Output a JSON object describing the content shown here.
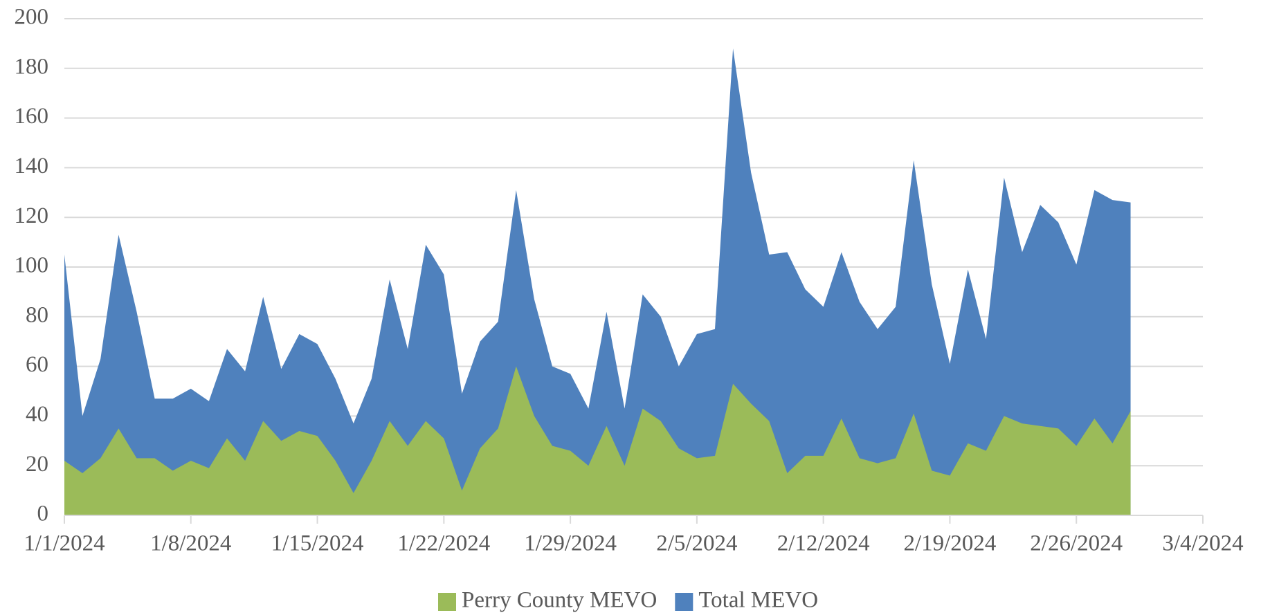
{
  "chart_data": {
    "type": "area",
    "x": [
      "1/1/2024",
      "1/2/2024",
      "1/3/2024",
      "1/4/2024",
      "1/5/2024",
      "1/6/2024",
      "1/7/2024",
      "1/8/2024",
      "1/9/2024",
      "1/10/2024",
      "1/11/2024",
      "1/12/2024",
      "1/13/2024",
      "1/14/2024",
      "1/15/2024",
      "1/16/2024",
      "1/17/2024",
      "1/18/2024",
      "1/19/2024",
      "1/20/2024",
      "1/21/2024",
      "1/22/2024",
      "1/23/2024",
      "1/24/2024",
      "1/25/2024",
      "1/26/2024",
      "1/27/2024",
      "1/28/2024",
      "1/29/2024",
      "1/30/2024",
      "1/31/2024",
      "2/1/2024",
      "2/2/2024",
      "2/3/2024",
      "2/4/2024",
      "2/5/2024",
      "2/6/2024",
      "2/7/2024",
      "2/8/2024",
      "2/9/2024",
      "2/10/2024",
      "2/11/2024",
      "2/12/2024",
      "2/13/2024",
      "2/14/2024",
      "2/15/2024",
      "2/16/2024",
      "2/17/2024",
      "2/18/2024",
      "2/19/2024",
      "2/20/2024",
      "2/21/2024",
      "2/22/2024",
      "2/23/2024",
      "2/24/2024",
      "2/25/2024",
      "2/26/2024",
      "2/27/2024",
      "2/28/2024",
      "2/29/2024"
    ],
    "series": [
      {
        "name": "Total MEVO",
        "color": "#4f81bd",
        "values": [
          105,
          40,
          63,
          113,
          82,
          47,
          47,
          51,
          46,
          67,
          58,
          88,
          59,
          73,
          69,
          55,
          37,
          55,
          95,
          67,
          109,
          97,
          49,
          70,
          78,
          131,
          87,
          60,
          57,
          43,
          82,
          43,
          89,
          80,
          60,
          73,
          75,
          188,
          138,
          105,
          106,
          91,
          84,
          106,
          86,
          75,
          84,
          143,
          93,
          61,
          99,
          71,
          136,
          106,
          125,
          118,
          101,
          131,
          127,
          126
        ]
      },
      {
        "name": "Perry County MEVO",
        "color": "#9bbb59",
        "values": [
          22,
          17,
          23,
          35,
          23,
          23,
          18,
          22,
          19,
          31,
          22,
          38,
          30,
          34,
          32,
          22,
          9,
          22,
          38,
          28,
          38,
          31,
          10,
          27,
          35,
          60,
          40,
          28,
          26,
          20,
          36,
          20,
          43,
          38,
          27,
          23,
          24,
          53,
          45,
          38,
          17,
          24,
          24,
          39,
          23,
          21,
          23,
          41,
          18,
          16,
          29,
          26,
          40,
          37,
          36,
          35,
          28,
          39,
          29,
          42
        ]
      }
    ],
    "legend_order": [
      "Perry County MEVO",
      "Total MEVO"
    ],
    "xlim": [
      "1/1/2024",
      "3/4/2024"
    ],
    "xticks": [
      "1/1/2024",
      "1/8/2024",
      "1/15/2024",
      "1/22/2024",
      "1/29/2024",
      "2/5/2024",
      "2/12/2024",
      "2/19/2024",
      "2/26/2024",
      "3/4/2024"
    ],
    "ylim": [
      0,
      200
    ],
    "yticks": [
      0,
      20,
      40,
      60,
      80,
      100,
      120,
      140,
      160,
      180,
      200
    ],
    "grid": true,
    "legend": "bottom"
  }
}
